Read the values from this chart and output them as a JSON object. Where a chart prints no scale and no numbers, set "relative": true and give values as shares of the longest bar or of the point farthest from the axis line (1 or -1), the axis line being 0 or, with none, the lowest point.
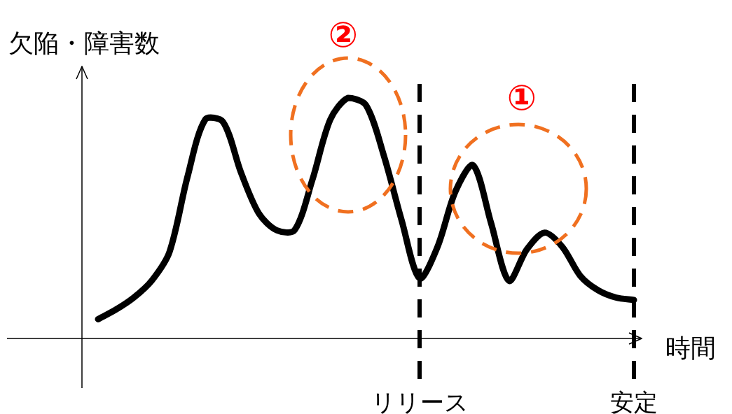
{
  "chart_data": {
    "type": "line",
    "relative": true,
    "xlabel": "時間",
    "ylabel": "欠陥・障害数",
    "tick_labels": "x",
    "marker": "none",
    "categories": [
      null,
      null,
      null,
      null,
      null,
      null,
      null,
      null,
      null,
      null,
      null,
      null,
      null,
      null,
      null,
      null,
      null,
      null,
      "リリース",
      null,
      null,
      null,
      null,
      null,
      null,
      null,
      null,
      null,
      null,
      null,
      "安定"
    ],
    "series": [
      {
        "color": "#000000",
        "values": [
          0.08,
          0.12,
          0.17,
          0.24,
          0.36,
          0.67,
          0.91,
          0.9,
          0.69,
          0.52,
          0.45,
          0.45,
          0.66,
          0.91,
          1.0,
          0.97,
          0.76,
          0.49,
          0.25,
          0.38,
          0.61,
          0.72,
          0.48,
          0.24,
          0.37,
          0.44,
          0.38,
          0.26,
          0.2,
          0.17,
          0.16
        ]
      }
    ],
    "ref_lines": [
      {
        "axis": "x",
        "value": "リリース",
        "color": "#000000",
        "line_style": "dashed"
      },
      {
        "axis": "x",
        "value": "安定",
        "color": "#000000",
        "line_style": "dashed"
      }
    ],
    "annotations": [
      "②",
      "①"
    ]
  }
}
